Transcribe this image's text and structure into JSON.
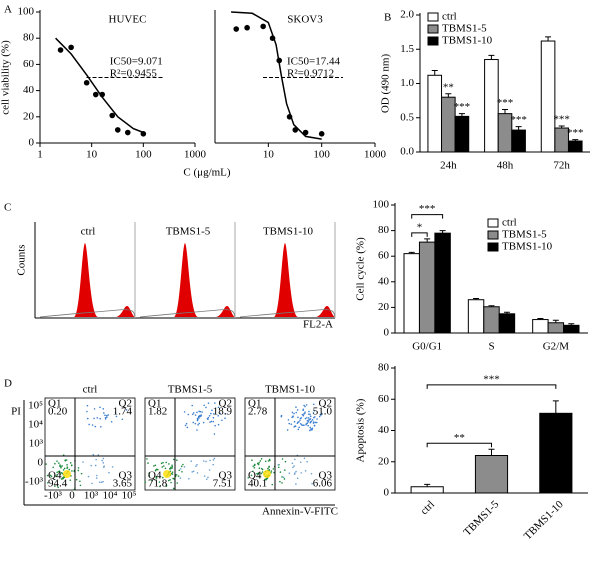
{
  "panel_labels": [
    "A",
    "B",
    "C",
    "D"
  ],
  "chart_data": [
    {
      "type": "scatter",
      "title": "HUVEC",
      "y_label": "cell viability (%)",
      "x_label": "C (μg/mL)",
      "log_x": true,
      "xlim": [
        1,
        1000
      ],
      "xticks": [
        1,
        10,
        100,
        1000
      ],
      "ylim": [
        0,
        100
      ],
      "yticks": [
        0,
        20,
        40,
        60,
        80,
        100
      ],
      "hline": 50,
      "annotations": [
        "IC50=9.071",
        "R²=0.9455"
      ],
      "series": [
        {
          "mode": "markers",
          "color": "#000000",
          "x": [
            2.5,
            4,
            8,
            12,
            16,
            25,
            32,
            50,
            100
          ],
          "values": [
            71,
            73,
            46,
            37,
            37,
            21,
            10,
            8,
            7
          ]
        },
        {
          "mode": "line",
          "color": "#000000",
          "x": [
            2,
            4,
            8,
            16,
            32,
            64,
            100
          ],
          "values": [
            80,
            68,
            52,
            35,
            20,
            11,
            8
          ]
        }
      ]
    },
    {
      "type": "scatter",
      "title": "SKOV3",
      "log_x": true,
      "xlim": [
        1,
        1000
      ],
      "xticks": [
        10,
        100,
        1000
      ],
      "ylim": [
        0,
        100
      ],
      "hline": 50,
      "annotations": [
        "IC50=17.44",
        "R²=0.9712"
      ],
      "series": [
        {
          "mode": "markers",
          "color": "#000000",
          "x": [
            2.5,
            4,
            8,
            12,
            16,
            25,
            32,
            50,
            100
          ],
          "values": [
            87,
            88,
            89,
            80,
            63,
            20,
            10,
            8,
            7
          ]
        },
        {
          "mode": "line",
          "color": "#000000",
          "x": [
            2,
            5,
            10,
            14,
            17.4,
            22,
            30,
            50,
            100
          ],
          "values": [
            100,
            99,
            92,
            75,
            52,
            30,
            14,
            5,
            3
          ]
        }
      ]
    },
    {
      "type": "bar",
      "y_label": "OD (490 nm)",
      "categories": [
        "24h",
        "48h",
        "72h"
      ],
      "ylim": [
        0,
        2
      ],
      "yticks": [
        {
          "value": 0,
          "label": "0.0"
        },
        0.5,
        {
          "value": 1,
          "label": "1.0"
        },
        1.5,
        {
          "value": 2,
          "label": "2.0"
        }
      ],
      "legend": "top-left",
      "series": [
        {
          "name": "ctrl",
          "color": "#ffffff",
          "values": [
            1.12,
            1.35,
            1.62
          ],
          "errors": [
            0.07,
            0.06,
            0.06
          ]
        },
        {
          "name": "TBMS1-5",
          "color": "#8c8c8c",
          "values": [
            0.8,
            0.56,
            0.35
          ],
          "errors": [
            0.05,
            0.06,
            0.03
          ],
          "sig_labels": [
            "**",
            "***",
            "***"
          ]
        },
        {
          "name": "TBMS1-10",
          "color": "#000000",
          "values": [
            0.52,
            0.32,
            0.16
          ],
          "errors": [
            0.04,
            0.05,
            0.02
          ],
          "sig_labels": [
            "***",
            "***",
            "***"
          ]
        }
      ]
    },
    {
      "type": "bar",
      "y_label": "Cell cycle (%)",
      "categories": [
        "G0/G1",
        "S",
        "G2/M"
      ],
      "ylim": [
        0,
        100
      ],
      "yticks": [
        0,
        20,
        40,
        60,
        80,
        100
      ],
      "legend": "top-right",
      "series": [
        {
          "name": "ctrl",
          "color": "#ffffff",
          "values": [
            62,
            26,
            10.5
          ],
          "errors": [
            1,
            1,
            0.8
          ]
        },
        {
          "name": "TBMS1-5",
          "color": "#8c8c8c",
          "values": [
            71,
            20.5,
            8
          ],
          "errors": [
            2.5,
            0.8,
            2
          ]
        },
        {
          "name": "TBMS1-10",
          "color": "#000000",
          "values": [
            78,
            15,
            6
          ],
          "errors": [
            2,
            1.2,
            1.2
          ]
        }
      ],
      "brackets": [
        {
          "text": "*",
          "category": 0,
          "from": 0,
          "to": 1
        },
        {
          "text": "***",
          "category": 0,
          "from": 0,
          "to": 2
        }
      ]
    },
    {
      "type": "bar",
      "y_label": "Apoptosis (%)",
      "categories": [
        "ctrl",
        "TBMS1-5",
        "TBMS1-10"
      ],
      "rotate_labels": true,
      "ylim": [
        0,
        80
      ],
      "yticks": [
        0,
        20,
        40,
        60,
        80
      ],
      "values": [
        4,
        24,
        51
      ],
      "errors": [
        1.5,
        4,
        8
      ],
      "colors": [
        "#ffffff",
        "#8c8c8c",
        "#000000"
      ],
      "brackets": [
        {
          "text": "**",
          "from": 0,
          "to": 1
        },
        {
          "text": "***",
          "from": 0,
          "to": 2
        }
      ]
    }
  ],
  "flow_histograms": {
    "titles": [
      "ctrl",
      "TBMS1-5",
      "TBMS1-10"
    ],
    "y_label": "Counts",
    "x_label": "FL2-A"
  },
  "dot_plots": {
    "y_label": "PI",
    "x_label": "Annexin-V-FITC",
    "x_ticks": [
      "-10³",
      "0",
      "10³",
      "10⁴",
      "10⁵"
    ],
    "y_ticks": [
      "10⁵",
      "10⁴",
      "10³",
      "0",
      "-10³"
    ],
    "panels": [
      {
        "title": "ctrl",
        "quadrants": [
          {
            "name": "Q1",
            "value": "0.20"
          },
          {
            "name": "Q2",
            "value": "1.74"
          },
          {
            "name": "Q3",
            "value": "3.65"
          },
          {
            "name": "Q4",
            "value": "94.4"
          }
        ]
      },
      {
        "title": "TBMS1-5",
        "quadrants": [
          {
            "name": "Q1",
            "value": "1.82"
          },
          {
            "name": "Q2",
            "value": "18.9"
          },
          {
            "name": "Q3",
            "value": "7.51"
          },
          {
            "name": "Q4",
            "value": "71.8"
          }
        ]
      },
      {
        "title": "TBMS1-10",
        "quadrants": [
          {
            "name": "Q1",
            "value": "2.78"
          },
          {
            "name": "Q2",
            "value": "51.0"
          },
          {
            "name": "Q3",
            "value": "6.06"
          },
          {
            "name": "Q4",
            "value": "40.1"
          }
        ]
      }
    ]
  }
}
